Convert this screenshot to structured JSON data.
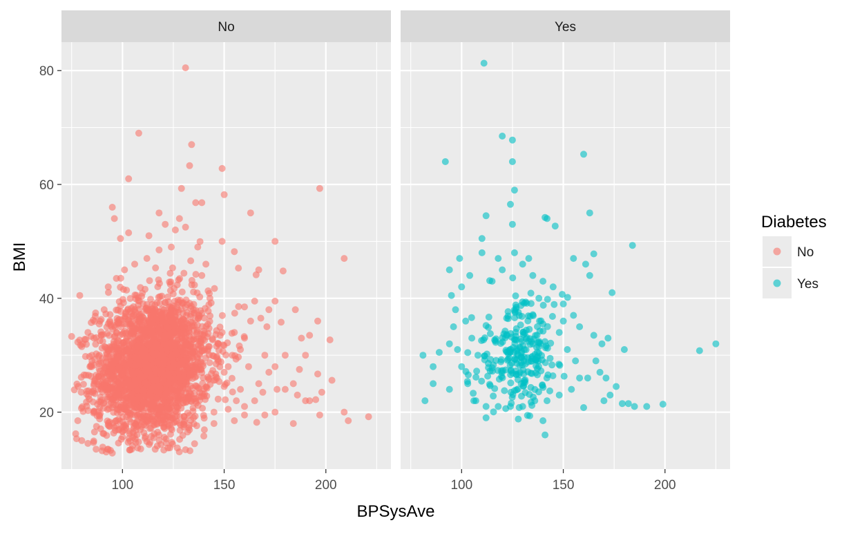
{
  "chart_data": {
    "type": "scatter",
    "xlabel": "BPSysAve",
    "ylabel": "BMI",
    "xlim": [
      70,
      232
    ],
    "ylim": [
      10,
      85
    ],
    "x_ticks": [
      100,
      150,
      200
    ],
    "y_ticks": [
      20,
      40,
      60,
      80
    ],
    "grid": true,
    "legend_position": "right",
    "legend": {
      "title": "Diabetes",
      "entries": [
        {
          "label": "No",
          "color": "#F8766D"
        },
        {
          "label": "Yes",
          "color": "#00BFC4"
        }
      ]
    },
    "facets": [
      {
        "label": "No",
        "color": "#F8766D",
        "cloud": {
          "center": [
            115,
            28
          ],
          "spread": [
            14,
            6
          ],
          "count": 2600
        },
        "points": [
          [
            131,
            80.5
          ],
          [
            108,
            69
          ],
          [
            134,
            67
          ],
          [
            103,
            61
          ],
          [
            133,
            63.3
          ],
          [
            149,
            62.8
          ],
          [
            129,
            59.3
          ],
          [
            150,
            58.2
          ],
          [
            197,
            59.3
          ],
          [
            95,
            56
          ],
          [
            96,
            54
          ],
          [
            118,
            55
          ],
          [
            136,
            56.8
          ],
          [
            163,
            55
          ],
          [
            139,
            56.8
          ],
          [
            128,
            54
          ],
          [
            103,
            51.5
          ],
          [
            113,
            51
          ],
          [
            99,
            50.5
          ],
          [
            121,
            53
          ],
          [
            149,
            50
          ],
          [
            175,
            50
          ],
          [
            209,
            47
          ],
          [
            155,
            48.2
          ],
          [
            167,
            45
          ],
          [
            179,
            44.8
          ],
          [
            157,
            45.3
          ],
          [
            175,
            39.5
          ],
          [
            165,
            39.5
          ],
          [
            188,
            33
          ],
          [
            192,
            33.5
          ],
          [
            196,
            36
          ],
          [
            202,
            32.7
          ],
          [
            185,
            38
          ],
          [
            160,
            38.5
          ],
          [
            168,
            36.5
          ],
          [
            178,
            35.8
          ],
          [
            171,
            35
          ],
          [
            75,
            33.3
          ],
          [
            78,
            32.3
          ],
          [
            80,
            31.5
          ],
          [
            79,
            40.5
          ],
          [
            84,
            28
          ],
          [
            82,
            26.5
          ],
          [
            180,
            30
          ],
          [
            175,
            28
          ],
          [
            190,
            30
          ],
          [
            187,
            27.5
          ],
          [
            196,
            26.7
          ],
          [
            203,
            25.6
          ],
          [
            184,
            25
          ],
          [
            172,
            27
          ],
          [
            176,
            24
          ],
          [
            169,
            23.5
          ],
          [
            186,
            23
          ],
          [
            192,
            22
          ],
          [
            195,
            22.2
          ],
          [
            198,
            23.5
          ],
          [
            190,
            22
          ],
          [
            180,
            24
          ],
          [
            175,
            20
          ],
          [
            165,
            22
          ],
          [
            160,
            21
          ],
          [
            166,
            18.2
          ],
          [
            184,
            18
          ],
          [
            197,
            19.5
          ],
          [
            209,
            20
          ],
          [
            211,
            18.5
          ],
          [
            221,
            19.2
          ],
          [
            152,
            20.5
          ],
          [
            150,
            24.5
          ],
          [
            78,
            18.5
          ],
          [
            77,
            16.2
          ],
          [
            80,
            15
          ],
          [
            83,
            14.5
          ],
          [
            87,
            13.5
          ],
          [
            90,
            13.2
          ],
          [
            92,
            13
          ],
          [
            95,
            12.8
          ],
          [
            127,
            13.7
          ],
          [
            140,
            15.8
          ],
          [
            132,
            16.5
          ],
          [
            118,
            16
          ],
          [
            145,
            18
          ],
          [
            155,
            18.5
          ],
          [
            160,
            19.5
          ],
          [
            145,
            20
          ],
          [
            170,
            19.5
          ],
          [
            156,
            22
          ],
          [
            150,
            27
          ],
          [
            147,
            32
          ],
          [
            149,
            34
          ],
          [
            154,
            30
          ],
          [
            152,
            28
          ],
          [
            158,
            31
          ],
          [
            155,
            34
          ],
          [
            160,
            33
          ],
          [
            162,
            28
          ],
          [
            170,
            30
          ],
          [
            167,
            25
          ],
          [
            158,
            24
          ],
          [
            163,
            36
          ],
          [
            172,
            38
          ],
          [
            143,
            40
          ],
          [
            139,
            44
          ],
          [
            141,
            46
          ],
          [
            137,
            49
          ],
          [
            131,
            52.5
          ],
          [
            126,
            52
          ],
          [
            124,
            49
          ],
          [
            118,
            48.5
          ],
          [
            112,
            47
          ],
          [
            106,
            46
          ],
          [
            101,
            45
          ],
          [
            97,
            43.5
          ],
          [
            93,
            42
          ],
          [
            91,
            38
          ],
          [
            89,
            36
          ],
          [
            86,
            33
          ],
          [
            85,
            30
          ],
          [
            88,
            24
          ],
          [
            86,
            20
          ]
        ]
      },
      {
        "label": "Yes",
        "color": "#00BFC4",
        "cloud": {
          "center": [
            128,
            30
          ],
          "spread": [
            11,
            4.5
          ],
          "count": 260
        },
        "points": [
          [
            111,
            81.3
          ],
          [
            120,
            68.5
          ],
          [
            125,
            67.8
          ],
          [
            92,
            64
          ],
          [
            125,
            64
          ],
          [
            160,
            65.3
          ],
          [
            126,
            59
          ],
          [
            124,
            56.5
          ],
          [
            112,
            54.5
          ],
          [
            142,
            54
          ],
          [
            163,
            55
          ],
          [
            141,
            54.2
          ],
          [
            125,
            53
          ],
          [
            146,
            52.7
          ],
          [
            110,
            50.5
          ],
          [
            184,
            49.3
          ],
          [
            165,
            47.8
          ],
          [
            155,
            47
          ],
          [
            161,
            46
          ],
          [
            163,
            44
          ],
          [
            174,
            41
          ],
          [
            99,
            47
          ],
          [
            94,
            45
          ],
          [
            95,
            40.5
          ],
          [
            89,
            30.5
          ],
          [
            86,
            28
          ],
          [
            81,
            30
          ],
          [
            82,
            22
          ],
          [
            86,
            25
          ],
          [
            94,
            24
          ],
          [
            180,
            31
          ],
          [
            182,
            21.5
          ],
          [
            179,
            21.5
          ],
          [
            185,
            21
          ],
          [
            191,
            21
          ],
          [
            199,
            21.4
          ],
          [
            217,
            30.8
          ],
          [
            225,
            32
          ],
          [
            160,
            20.8
          ],
          [
            140,
            18.5
          ],
          [
            141,
            16
          ],
          [
            112,
            19
          ],
          [
            106,
            22
          ],
          [
            170,
            22
          ],
          [
            173,
            23
          ],
          [
            176,
            24.5
          ],
          [
            171,
            26
          ],
          [
            168,
            27
          ],
          [
            166,
            29
          ],
          [
            162,
            26
          ],
          [
            165,
            33.5
          ],
          [
            169,
            32
          ],
          [
            172,
            33
          ],
          [
            158,
            35
          ],
          [
            155,
            37
          ],
          [
            150,
            39
          ],
          [
            145,
            42
          ],
          [
            140,
            43
          ],
          [
            130,
            46
          ],
          [
            118,
            47
          ],
          [
            110,
            48
          ],
          [
            104,
            44
          ],
          [
            100,
            42
          ],
          [
            97,
            38
          ],
          [
            96,
            35
          ],
          [
            94,
            32
          ],
          [
            100,
            28
          ],
          [
            103,
            25
          ],
          [
            107,
            22
          ],
          [
            112,
            21
          ],
          [
            118,
            21
          ],
          [
            124,
            21
          ],
          [
            130,
            21
          ],
          [
            136,
            22
          ],
          [
            142,
            22
          ],
          [
            148,
            23
          ],
          [
            154,
            24
          ],
          [
            158,
            26
          ],
          [
            156,
            29
          ],
          [
            152,
            31
          ],
          [
            148,
            34
          ],
          [
            150,
            36
          ],
          [
            120,
            45
          ],
          [
            115,
            43
          ],
          [
            135,
            44
          ],
          [
            138,
            40
          ],
          [
            126,
            48
          ],
          [
            133,
            47
          ],
          [
            102,
            36
          ],
          [
            105,
            33
          ],
          [
            108,
            30
          ],
          [
            98,
            31
          ]
        ]
      }
    ]
  }
}
